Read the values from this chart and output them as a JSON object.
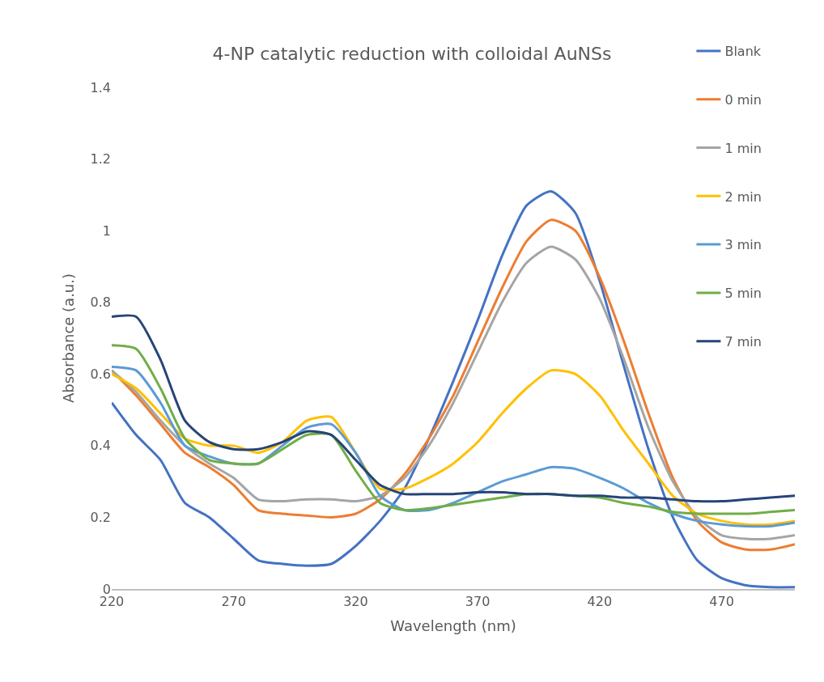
{
  "chart_data": {
    "type": "line",
    "title": "4-NP catalytic reduction with colloidal AuNSs",
    "xlabel": "Wavelength (nm)",
    "ylabel": "Absorbance (a.u.)",
    "x": [
      220,
      230,
      240,
      250,
      260,
      270,
      280,
      290,
      300,
      310,
      320,
      330,
      340,
      350,
      360,
      370,
      380,
      390,
      400,
      410,
      420,
      430,
      440,
      450,
      460,
      470,
      480,
      490,
      500
    ],
    "series": [
      {
        "name": "Blank",
        "color": "#4472c4",
        "values": [
          0.52,
          0.43,
          0.36,
          0.24,
          0.2,
          0.14,
          0.08,
          0.07,
          0.065,
          0.07,
          0.12,
          0.19,
          0.28,
          0.42,
          0.58,
          0.75,
          0.93,
          1.07,
          1.11,
          1.05,
          0.86,
          0.62,
          0.39,
          0.2,
          0.08,
          0.03,
          0.01,
          0.005,
          0.005
        ]
      },
      {
        "name": "0 min",
        "color": "#ed7d31",
        "values": [
          0.61,
          0.54,
          0.46,
          0.38,
          0.34,
          0.29,
          0.22,
          0.21,
          0.205,
          0.2,
          0.21,
          0.25,
          0.32,
          0.42,
          0.54,
          0.69,
          0.84,
          0.97,
          1.03,
          1.0,
          0.87,
          0.69,
          0.49,
          0.31,
          0.19,
          0.13,
          0.11,
          0.11,
          0.125
        ]
      },
      {
        "name": "1 min",
        "color": "#a5a5a5",
        "values": [
          0.61,
          0.55,
          0.47,
          0.4,
          0.35,
          0.31,
          0.25,
          0.245,
          0.25,
          0.25,
          0.245,
          0.26,
          0.31,
          0.4,
          0.52,
          0.66,
          0.8,
          0.91,
          0.955,
          0.92,
          0.81,
          0.64,
          0.45,
          0.3,
          0.2,
          0.15,
          0.14,
          0.14,
          0.15
        ]
      },
      {
        "name": "2 min",
        "color": "#ffc000",
        "values": [
          0.6,
          0.56,
          0.49,
          0.42,
          0.4,
          0.4,
          0.38,
          0.41,
          0.47,
          0.48,
          0.38,
          0.28,
          0.28,
          0.31,
          0.35,
          0.41,
          0.49,
          0.56,
          0.61,
          0.6,
          0.54,
          0.44,
          0.35,
          0.26,
          0.21,
          0.19,
          0.18,
          0.18,
          0.19
        ]
      },
      {
        "name": "3 min",
        "color": "#5b9bd5",
        "values": [
          0.62,
          0.61,
          0.52,
          0.4,
          0.37,
          0.35,
          0.35,
          0.4,
          0.45,
          0.46,
          0.38,
          0.26,
          0.22,
          0.22,
          0.24,
          0.27,
          0.3,
          0.32,
          0.34,
          0.335,
          0.31,
          0.28,
          0.24,
          0.21,
          0.19,
          0.18,
          0.175,
          0.175,
          0.185
        ]
      },
      {
        "name": "5 min",
        "color": "#70ad47",
        "values": [
          0.68,
          0.67,
          0.56,
          0.42,
          0.36,
          0.35,
          0.35,
          0.39,
          0.43,
          0.43,
          0.33,
          0.24,
          0.22,
          0.225,
          0.235,
          0.245,
          0.255,
          0.265,
          0.265,
          0.26,
          0.255,
          0.24,
          0.23,
          0.215,
          0.21,
          0.21,
          0.21,
          0.215,
          0.22
        ]
      },
      {
        "name": "7 min",
        "color": "#264478",
        "values": [
          0.76,
          0.76,
          0.64,
          0.47,
          0.41,
          0.39,
          0.39,
          0.41,
          0.44,
          0.43,
          0.36,
          0.29,
          0.265,
          0.265,
          0.265,
          0.27,
          0.27,
          0.265,
          0.265,
          0.26,
          0.26,
          0.255,
          0.255,
          0.25,
          0.245,
          0.245,
          0.25,
          0.255,
          0.26
        ]
      }
    ],
    "xlim": [
      220,
      500
    ],
    "xticks": [
      220,
      270,
      320,
      370,
      420,
      470
    ],
    "ylim": [
      0,
      1.4
    ],
    "yticks": [
      0,
      0.2,
      0.4,
      0.6,
      0.8,
      1,
      1.2,
      1.4
    ],
    "legend": "top right",
    "marker": "none",
    "line_style": "solid"
  }
}
